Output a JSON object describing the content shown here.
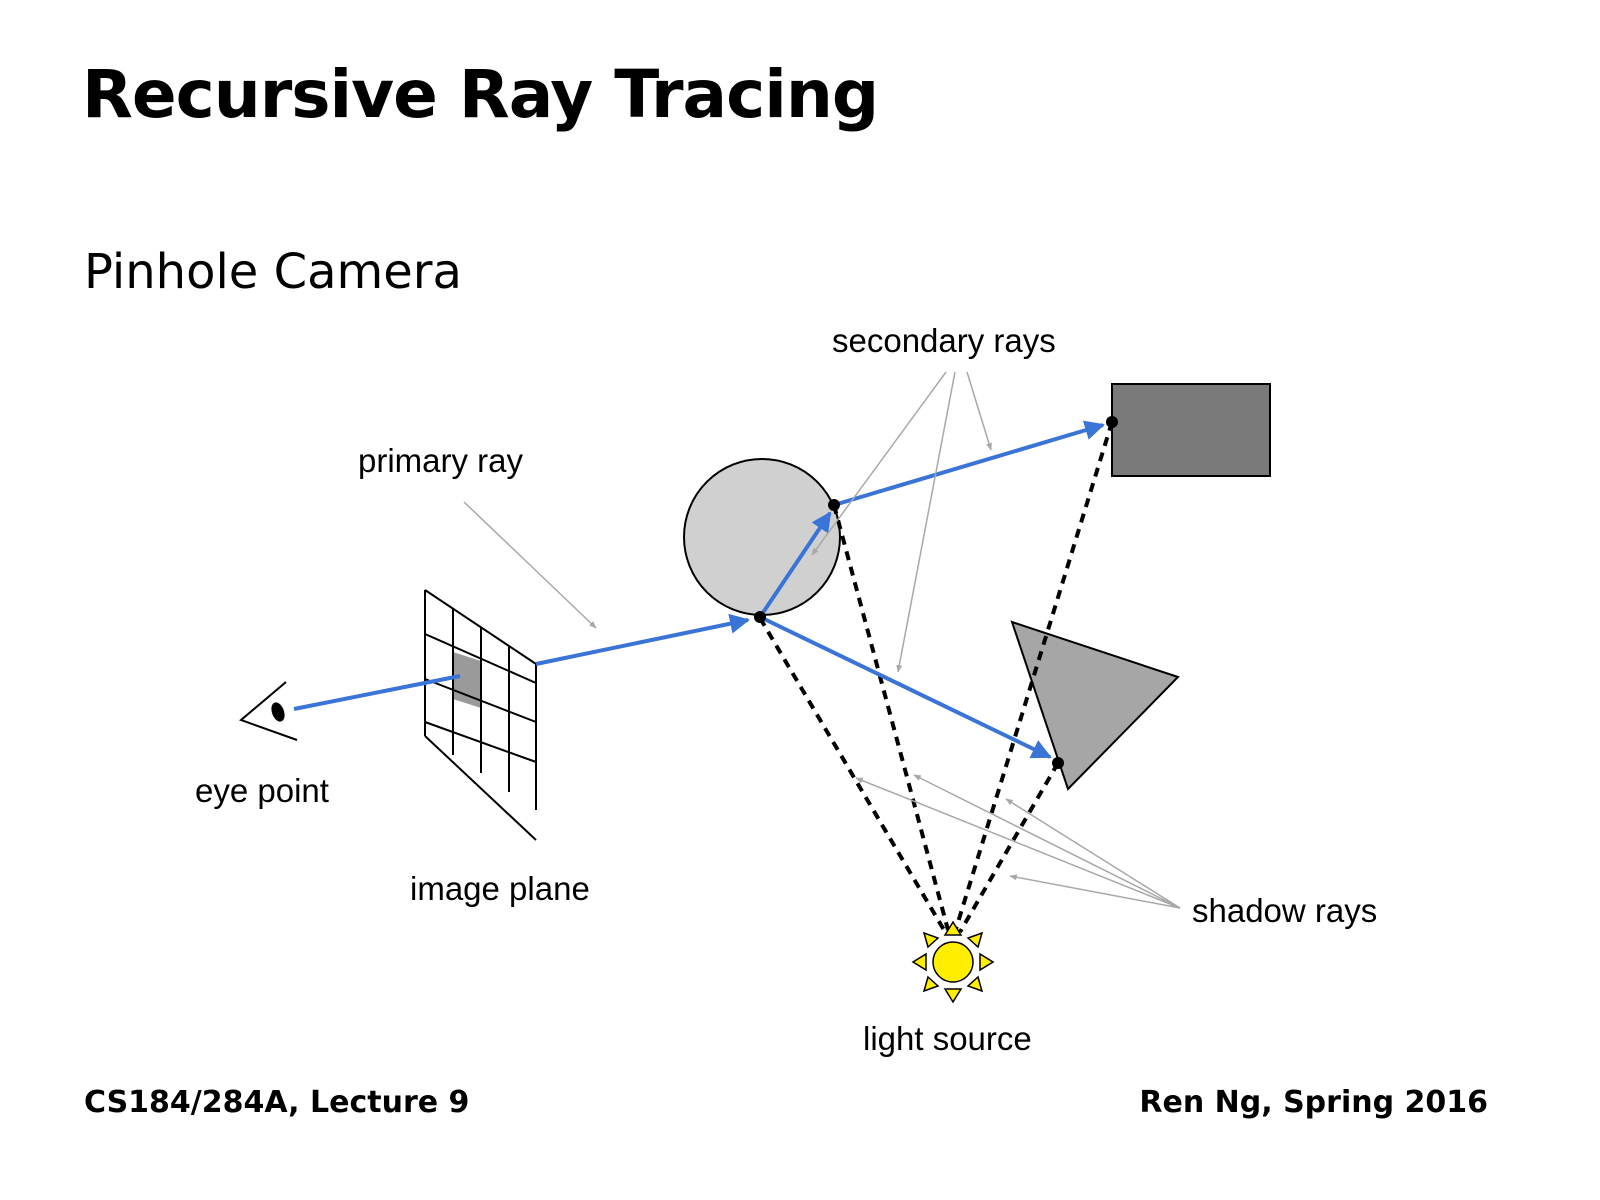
{
  "slide": {
    "title": "Recursive Ray Tracing",
    "subtitle": "Pinhole Camera"
  },
  "diagram": {
    "labels": {
      "eye_point": "eye point",
      "image_plane": "image plane",
      "primary_ray": "primary ray",
      "secondary_rays": "secondary rays",
      "shadow_rays": "shadow rays",
      "light_source": "light source"
    },
    "colors": {
      "ray": "#3a74d6",
      "annotation_line": "#a8a8a8",
      "sphere": "#d0d0d0",
      "rectangle": "#7a7a7a",
      "triangle": "#a6a6a6",
      "image_plane_pixel": "#9a9a9a",
      "sun": "#ffee00"
    }
  },
  "footer": {
    "left": "CS184/284A, Lecture 9",
    "right": "Ren Ng, Spring 2016"
  }
}
